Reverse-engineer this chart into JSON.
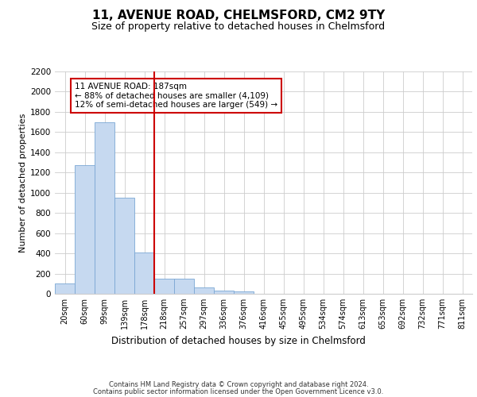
{
  "title": "11, AVENUE ROAD, CHELMSFORD, CM2 9TY",
  "subtitle": "Size of property relative to detached houses in Chelmsford",
  "xlabel": "Distribution of detached houses by size in Chelmsford",
  "ylabel": "Number of detached properties",
  "footer_line1": "Contains HM Land Registry data © Crown copyright and database right 2024.",
  "footer_line2": "Contains public sector information licensed under the Open Government Licence v3.0.",
  "bar_labels": [
    "20sqm",
    "60sqm",
    "99sqm",
    "139sqm",
    "178sqm",
    "218sqm",
    "257sqm",
    "297sqm",
    "336sqm",
    "376sqm",
    "416sqm",
    "455sqm",
    "495sqm",
    "534sqm",
    "574sqm",
    "613sqm",
    "653sqm",
    "692sqm",
    "732sqm",
    "771sqm",
    "811sqm"
  ],
  "bar_values": [
    100,
    1270,
    1700,
    950,
    410,
    150,
    150,
    60,
    35,
    25,
    0,
    0,
    0,
    0,
    0,
    0,
    0,
    0,
    0,
    0,
    0
  ],
  "bar_color": "#c6d9f0",
  "bar_edge_color": "#7ba7d4",
  "vline_x_index": 4.5,
  "vline_color": "#cc0000",
  "annotation_text": "11 AVENUE ROAD: 187sqm\n← 88% of detached houses are smaller (4,109)\n12% of semi-detached houses are larger (549) →",
  "annotation_box_color": "#cc0000",
  "ylim": [
    0,
    2200
  ],
  "yticks": [
    0,
    200,
    400,
    600,
    800,
    1000,
    1200,
    1400,
    1600,
    1800,
    2000,
    2200
  ],
  "grid_color": "#cccccc",
  "background_color": "#ffffff",
  "title_fontsize": 11,
  "subtitle_fontsize": 9,
  "ylabel_fontsize": 8,
  "annotation_fontsize": 7.5,
  "tick_fontsize": 7,
  "ytick_fontsize": 7.5,
  "xlabel_fontsize": 8.5,
  "footer_fontsize": 6
}
